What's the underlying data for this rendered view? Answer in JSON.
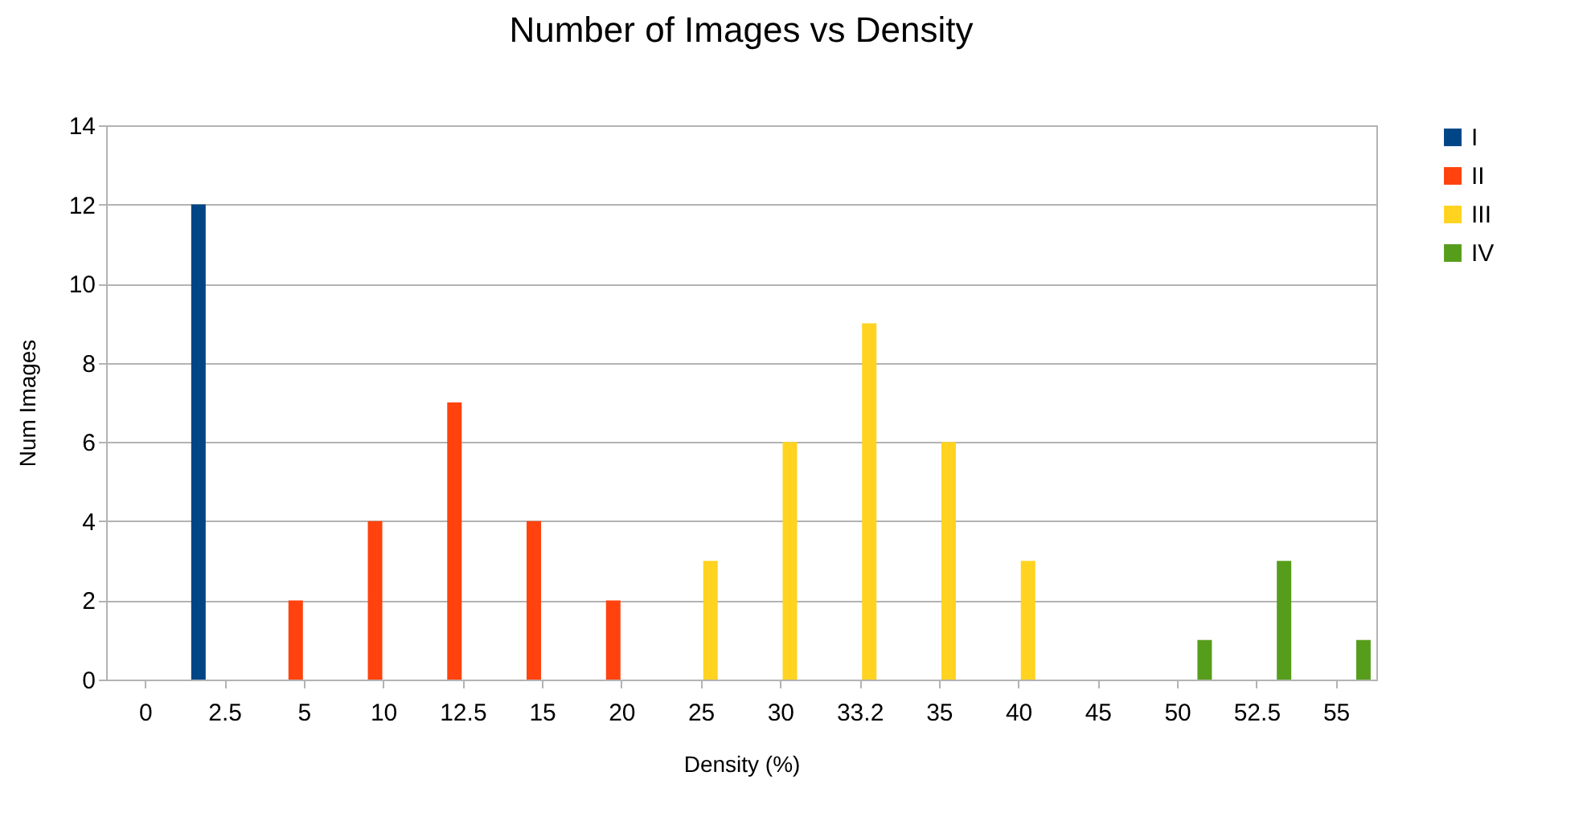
{
  "chart_data": {
    "type": "bar",
    "title": "Number of Images vs Density",
    "xlabel": "Density (%)",
    "ylabel": "Num Images",
    "categories": [
      "0",
      "2.5",
      "5",
      "10",
      "12.5",
      "15",
      "20",
      "25",
      "30",
      "33.2",
      "35",
      "40",
      "45",
      "50",
      "52.5",
      "55"
    ],
    "series": [
      {
        "name": "I",
        "color": "#004586",
        "values": [
          null,
          12,
          null,
          null,
          null,
          null,
          null,
          null,
          null,
          null,
          null,
          null,
          null,
          null,
          null,
          null
        ]
      },
      {
        "name": "II",
        "color": "#ff420e",
        "values": [
          null,
          null,
          2,
          4,
          7,
          4,
          2,
          null,
          null,
          null,
          null,
          null,
          null,
          null,
          null,
          null
        ]
      },
      {
        "name": "III",
        "color": "#ffd320",
        "values": [
          null,
          null,
          null,
          null,
          null,
          null,
          null,
          3,
          6,
          9,
          6,
          3,
          null,
          null,
          null,
          null
        ]
      },
      {
        "name": "IV",
        "color": "#579d1c",
        "values": [
          null,
          null,
          null,
          null,
          null,
          null,
          null,
          null,
          null,
          null,
          null,
          null,
          null,
          1,
          3,
          1
        ]
      }
    ],
    "ylim": [
      0,
      14
    ],
    "yticks": [
      0,
      2,
      4,
      6,
      8,
      10,
      12,
      14
    ],
    "grid": "y",
    "legend": "right"
  }
}
